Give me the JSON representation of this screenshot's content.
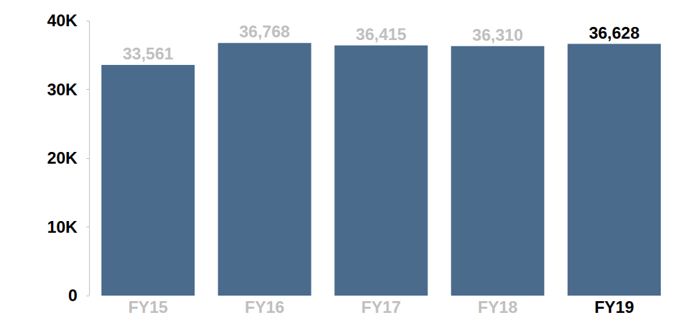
{
  "chart_data": {
    "type": "bar",
    "categories": [
      "FY15",
      "FY16",
      "FY17",
      "FY18",
      "FY19"
    ],
    "values": [
      33561,
      36768,
      36415,
      36310,
      36628
    ],
    "value_labels": [
      "33,561",
      "36,768",
      "36,415",
      "36,310",
      "36,628"
    ],
    "data_labels": true,
    "color": "#4a6b8c",
    "ylim": [
      0,
      40000
    ],
    "yticks": [
      0,
      {
        "value": 10000,
        "label": "10K"
      },
      {
        "value": 20000,
        "label": "20K"
      },
      {
        "value": 30000,
        "label": "30K"
      },
      {
        "value": 40000,
        "label": "40K"
      }
    ],
    "grid": false
  }
}
